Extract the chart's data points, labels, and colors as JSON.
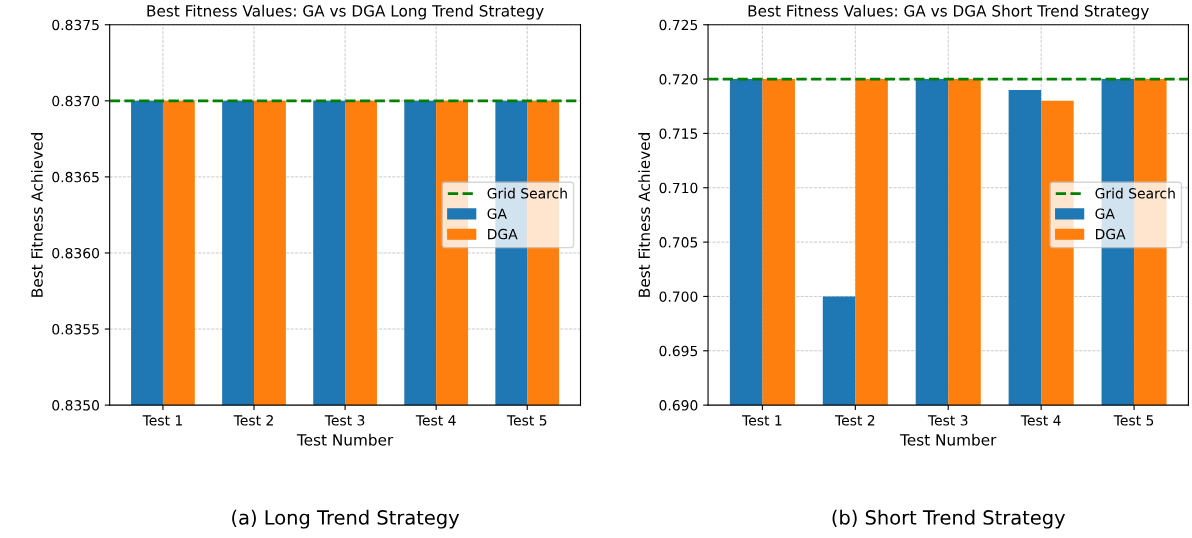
{
  "chart_data": [
    {
      "type": "bar",
      "title": "Best Fitness Values: GA vs DGA Long Trend Strategy",
      "xlabel": "Test Number",
      "ylabel": "Best Fitness Achieved",
      "categories": [
        "Test 1",
        "Test 2",
        "Test 3",
        "Test 4",
        "Test 5"
      ],
      "series": [
        {
          "name": "GA",
          "color": "#1f77b4",
          "values": [
            0.837,
            0.837,
            0.837,
            0.837,
            0.837
          ]
        },
        {
          "name": "DGA",
          "color": "#ff7f0e",
          "values": [
            0.837,
            0.837,
            0.837,
            0.837,
            0.837
          ]
        }
      ],
      "ref_lines": [
        {
          "axis": "y",
          "value": 0.837,
          "label": "Grid Search",
          "color": "#008000",
          "line_style": "dashed"
        }
      ],
      "ylim": [
        0.835,
        0.8375
      ],
      "yticks": [
        {
          "value": 0.835,
          "label": "0.8350"
        },
        {
          "value": 0.8355,
          "label": "0.8355"
        },
        {
          "value": 0.836,
          "label": "0.8360"
        },
        {
          "value": 0.8365,
          "label": "0.8365"
        },
        {
          "value": 0.837,
          "label": "0.8370"
        },
        {
          "value": 0.8375,
          "label": "0.8375"
        }
      ],
      "grid": true,
      "legend": "right",
      "annotations": [
        "(a) Long Trend Strategy"
      ]
    },
    {
      "type": "bar",
      "title": "Best Fitness Values: GA vs DGA Short Trend Strategy",
      "xlabel": "Test Number",
      "ylabel": "Best Fitness Achieved",
      "categories": [
        "Test 1",
        "Test 2",
        "Test 3",
        "Test 4",
        "Test 5"
      ],
      "series": [
        {
          "name": "GA",
          "color": "#1f77b4",
          "values": [
            0.72,
            0.7,
            0.72,
            0.719,
            0.72
          ]
        },
        {
          "name": "DGA",
          "color": "#ff7f0e",
          "values": [
            0.72,
            0.72,
            0.72,
            0.718,
            0.72
          ]
        }
      ],
      "ref_lines": [
        {
          "axis": "y",
          "value": 0.72,
          "label": "Grid Search",
          "color": "#008000",
          "line_style": "dashed"
        }
      ],
      "ylim": [
        0.69,
        0.725
      ],
      "yticks": [
        {
          "value": 0.69,
          "label": "0.690"
        },
        {
          "value": 0.695,
          "label": "0.695"
        },
        {
          "value": 0.7,
          "label": "0.700"
        },
        {
          "value": 0.705,
          "label": "0.705"
        },
        {
          "value": 0.71,
          "label": "0.710"
        },
        {
          "value": 0.715,
          "label": "0.715"
        },
        {
          "value": 0.72,
          "label": "0.720"
        },
        {
          "value": 0.725,
          "label": "0.725"
        }
      ],
      "grid": true,
      "legend": "right",
      "annotations": [
        "(b) Short Trend Strategy"
      ]
    }
  ]
}
